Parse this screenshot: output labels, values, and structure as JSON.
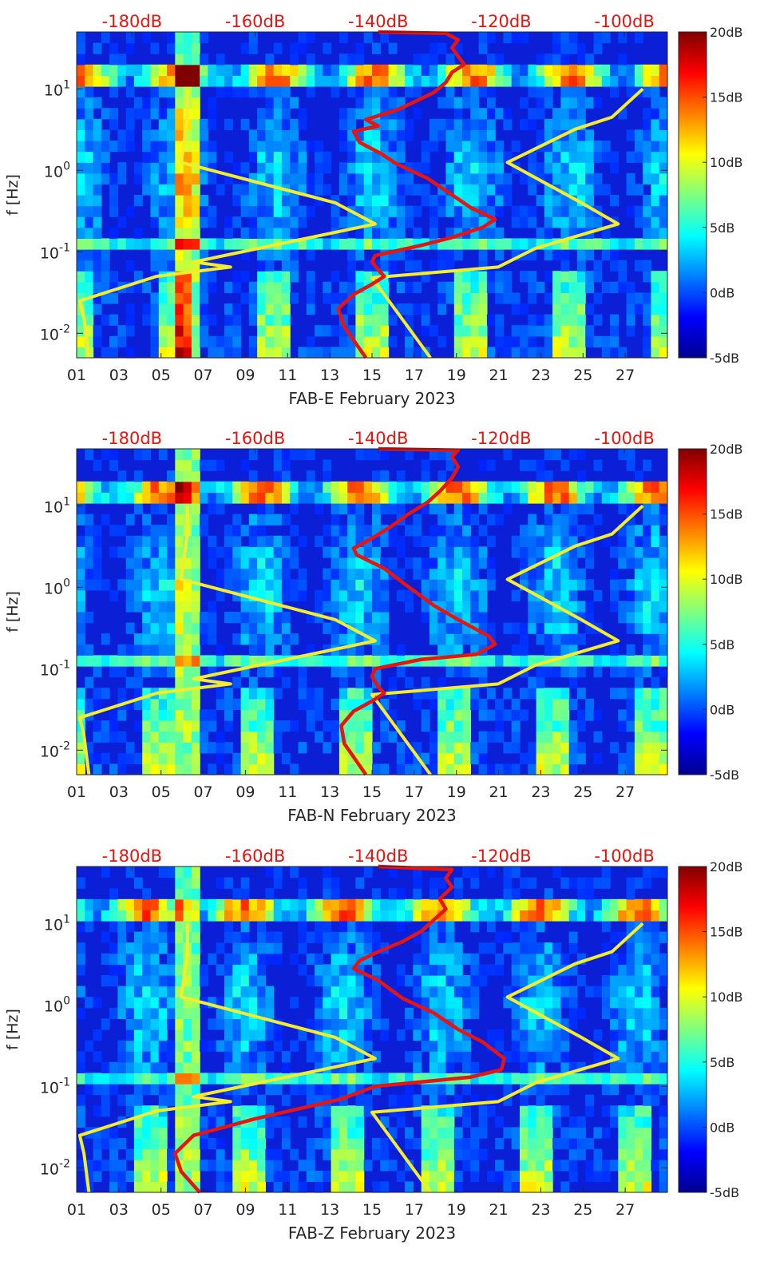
{
  "colors": {
    "low": "#00008f",
    "high": "#800000",
    "upper_noise_model": "#f5ec2a",
    "median_psd": "#e8140f",
    "axis": "#262626",
    "top_db_labels": "#e8140f"
  },
  "chart_data": [
    {
      "type": "heatmap",
      "station": "FAB-E",
      "xlabel": "FAB-E February 2023",
      "ylabel": "f [Hz]",
      "x_ticks": [
        "01",
        "03",
        "05",
        "07",
        "09",
        "11",
        "13",
        "15",
        "17",
        "19",
        "21",
        "23",
        "25",
        "27"
      ],
      "y_scale": "log",
      "y_ticks": [
        "10^-2",
        "10^-1",
        "10^0",
        "10^1"
      ],
      "ylim": [
        0.005,
        50
      ],
      "xlim_days": [
        1,
        29
      ],
      "top_db_ticks": [
        "-180dB",
        "-160dB",
        "-140dB",
        "-120dB",
        "-100dB"
      ],
      "colorbar_ticks": [
        "20dB",
        "15dB",
        "10dB",
        "5dB",
        "0dB",
        "-5dB"
      ],
      "colorbar_range_db": [
        -5,
        20
      ],
      "overlays": [
        {
          "kind": "yellow-noise-model-low",
          "points": [
            [
              -187,
              0.005
            ],
            [
              -187.8,
              0.015
            ],
            [
              -188.5,
              0.025
            ],
            [
              -176,
              0.05
            ],
            [
              -164,
              0.065
            ],
            [
              -170,
              0.075
            ],
            [
              -165,
              0.09
            ],
            [
              -140.5,
              0.22
            ],
            [
              -147,
              0.4
            ],
            [
              -172,
              1.25
            ],
            [
              -171,
              4.5
            ],
            [
              -171,
              10
            ]
          ]
        },
        {
          "kind": "yellow-noise-model-high",
          "points": [
            [
              -131.5,
              0.005
            ],
            [
              -141,
              0.048
            ],
            [
              -120.5,
              0.065
            ],
            [
              -114.5,
              0.11
            ],
            [
              -101,
              0.22
            ],
            [
              -107,
              0.4
            ],
            [
              -119,
              1.25
            ],
            [
              -108,
              3.2
            ],
            [
              -102,
              4.5
            ],
            [
              -97,
              10
            ]
          ]
        },
        {
          "kind": "red-median-psd",
          "points": [
            [
              -142,
              0.005
            ],
            [
              -145.5,
              0.012
            ],
            [
              -146.5,
              0.02
            ],
            [
              -144,
              0.03
            ],
            [
              -141,
              0.04
            ],
            [
              -139,
              0.05
            ],
            [
              -140,
              0.06
            ],
            [
              -141,
              0.075
            ],
            [
              -140.5,
              0.09
            ],
            [
              -133,
              0.12
            ],
            [
              -128,
              0.15
            ],
            [
              -123,
              0.2
            ],
            [
              -121,
              0.25
            ],
            [
              -125,
              0.35
            ],
            [
              -128,
              0.5
            ],
            [
              -132,
              0.8
            ],
            [
              -137,
              1.2
            ],
            [
              -139.5,
              1.6
            ],
            [
              -143,
              2.2
            ],
            [
              -144,
              3
            ],
            [
              -140,
              3.5
            ],
            [
              -142,
              4.2
            ],
            [
              -137,
              5.5
            ],
            [
              -134,
              7
            ],
            [
              -131,
              9
            ],
            [
              -129,
              12
            ],
            [
              -128,
              16
            ],
            [
              -126,
              20
            ],
            [
              -127,
              25
            ],
            [
              -128,
              32
            ],
            [
              -127,
              40
            ],
            [
              -129,
              48
            ],
            [
              -140,
              50
            ]
          ]
        }
      ]
    },
    {
      "type": "heatmap",
      "station": "FAB-N",
      "xlabel": "FAB-N February 2023",
      "ylabel": "f [Hz]",
      "x_ticks": [
        "01",
        "03",
        "05",
        "07",
        "09",
        "11",
        "13",
        "15",
        "17",
        "19",
        "21",
        "23",
        "25",
        "27"
      ],
      "y_scale": "log",
      "y_ticks": [
        "10^-2",
        "10^-1",
        "10^0",
        "10^1"
      ],
      "ylim": [
        0.005,
        50
      ],
      "xlim_days": [
        1,
        29
      ],
      "top_db_ticks": [
        "-180dB",
        "-160dB",
        "-140dB",
        "-120dB",
        "-100dB"
      ],
      "colorbar_ticks": [
        "20dB",
        "15dB",
        "10dB",
        "5dB",
        "0dB",
        "-5dB"
      ],
      "colorbar_range_db": [
        -5,
        20
      ],
      "overlays": [
        {
          "kind": "yellow-noise-model-low",
          "points": [
            [
              -187,
              0.005
            ],
            [
              -187.8,
              0.015
            ],
            [
              -188.5,
              0.025
            ],
            [
              -176,
              0.05
            ],
            [
              -164,
              0.065
            ],
            [
              -170,
              0.075
            ],
            [
              -165,
              0.09
            ],
            [
              -140.5,
              0.22
            ],
            [
              -147,
              0.4
            ],
            [
              -172,
              1.25
            ],
            [
              -171,
              4.5
            ],
            [
              -171,
              10
            ]
          ]
        },
        {
          "kind": "yellow-noise-model-high",
          "points": [
            [
              -131.5,
              0.005
            ],
            [
              -141,
              0.048
            ],
            [
              -120.5,
              0.065
            ],
            [
              -114.5,
              0.11
            ],
            [
              -101,
              0.22
            ],
            [
              -107,
              0.4
            ],
            [
              -119,
              1.25
            ],
            [
              -108,
              3.2
            ],
            [
              -102,
              4.5
            ],
            [
              -97,
              10
            ]
          ]
        },
        {
          "kind": "red-median-psd",
          "points": [
            [
              -142,
              0.005
            ],
            [
              -145.5,
              0.012
            ],
            [
              -146,
              0.02
            ],
            [
              -144,
              0.03
            ],
            [
              -141,
              0.04
            ],
            [
              -139,
              0.05
            ],
            [
              -140,
              0.06
            ],
            [
              -141,
              0.08
            ],
            [
              -140.5,
              0.1
            ],
            [
              -133,
              0.13
            ],
            [
              -124,
              0.15
            ],
            [
              -121,
              0.2
            ],
            [
              -122,
              0.25
            ],
            [
              -127,
              0.4
            ],
            [
              -131,
              0.6
            ],
            [
              -135,
              1
            ],
            [
              -139,
              1.7
            ],
            [
              -143.5,
              2.5
            ],
            [
              -144,
              3
            ],
            [
              -141,
              4
            ],
            [
              -138,
              5.5
            ],
            [
              -135,
              8
            ],
            [
              -132,
              11
            ],
            [
              -130,
              15
            ],
            [
              -128,
              22
            ],
            [
              -127,
              30
            ],
            [
              -128,
              40
            ],
            [
              -127,
              48
            ],
            [
              -140,
              50
            ]
          ]
        }
      ]
    },
    {
      "type": "heatmap",
      "station": "FAB-Z",
      "xlabel": "FAB-Z February 2023",
      "ylabel": "f [Hz]",
      "x_ticks": [
        "01",
        "03",
        "05",
        "07",
        "09",
        "11",
        "13",
        "15",
        "17",
        "19",
        "21",
        "23",
        "25",
        "27"
      ],
      "y_scale": "log",
      "y_ticks": [
        "10^-2",
        "10^-1",
        "10^0",
        "10^1"
      ],
      "ylim": [
        0.005,
        50
      ],
      "xlim_days": [
        1,
        29
      ],
      "top_db_ticks": [
        "-180dB",
        "-160dB",
        "-140dB",
        "-120dB",
        "-100dB"
      ],
      "colorbar_ticks": [
        "20dB",
        "15dB",
        "10dB",
        "5dB",
        "0dB",
        "-5dB"
      ],
      "colorbar_range_db": [
        -5,
        20
      ],
      "overlays": [
        {
          "kind": "yellow-noise-model-low",
          "points": [
            [
              -187,
              0.005
            ],
            [
              -187.8,
              0.015
            ],
            [
              -188.5,
              0.025
            ],
            [
              -176,
              0.05
            ],
            [
              -164,
              0.065
            ],
            [
              -170,
              0.075
            ],
            [
              -165,
              0.09
            ],
            [
              -140.5,
              0.22
            ],
            [
              -147,
              0.4
            ],
            [
              -172,
              1.25
            ],
            [
              -171,
              4.5
            ],
            [
              -171,
              10
            ]
          ]
        },
        {
          "kind": "yellow-noise-model-high",
          "points": [
            [
              -131.5,
              0.005
            ],
            [
              -141,
              0.048
            ],
            [
              -120.5,
              0.065
            ],
            [
              -114.5,
              0.11
            ],
            [
              -101,
              0.22
            ],
            [
              -107,
              0.4
            ],
            [
              -119,
              1.25
            ],
            [
              -108,
              3.2
            ],
            [
              -102,
              4.5
            ],
            [
              -97,
              10
            ]
          ]
        },
        {
          "kind": "red-median-psd",
          "points": [
            [
              -169,
              0.005
            ],
            [
              -172,
              0.009
            ],
            [
              -173,
              0.015
            ],
            [
              -170,
              0.025
            ],
            [
              -160,
              0.04
            ],
            [
              -146,
              0.07
            ],
            [
              -140.5,
              0.1
            ],
            [
              -125,
              0.13
            ],
            [
              -120,
              0.16
            ],
            [
              -119.5,
              0.22
            ],
            [
              -123,
              0.35
            ],
            [
              -127,
              0.5
            ],
            [
              -131,
              0.8
            ],
            [
              -136,
              1.2
            ],
            [
              -140,
              2
            ],
            [
              -144,
              2.8
            ],
            [
              -143,
              3.5
            ],
            [
              -140,
              4.5
            ],
            [
              -136,
              6
            ],
            [
              -133,
              8
            ],
            [
              -131,
              11
            ],
            [
              -129,
              15
            ],
            [
              -130,
              20
            ],
            [
              -128,
              28
            ],
            [
              -129,
              36
            ],
            [
              -128,
              46
            ],
            [
              -140,
              50
            ]
          ]
        }
      ]
    }
  ]
}
